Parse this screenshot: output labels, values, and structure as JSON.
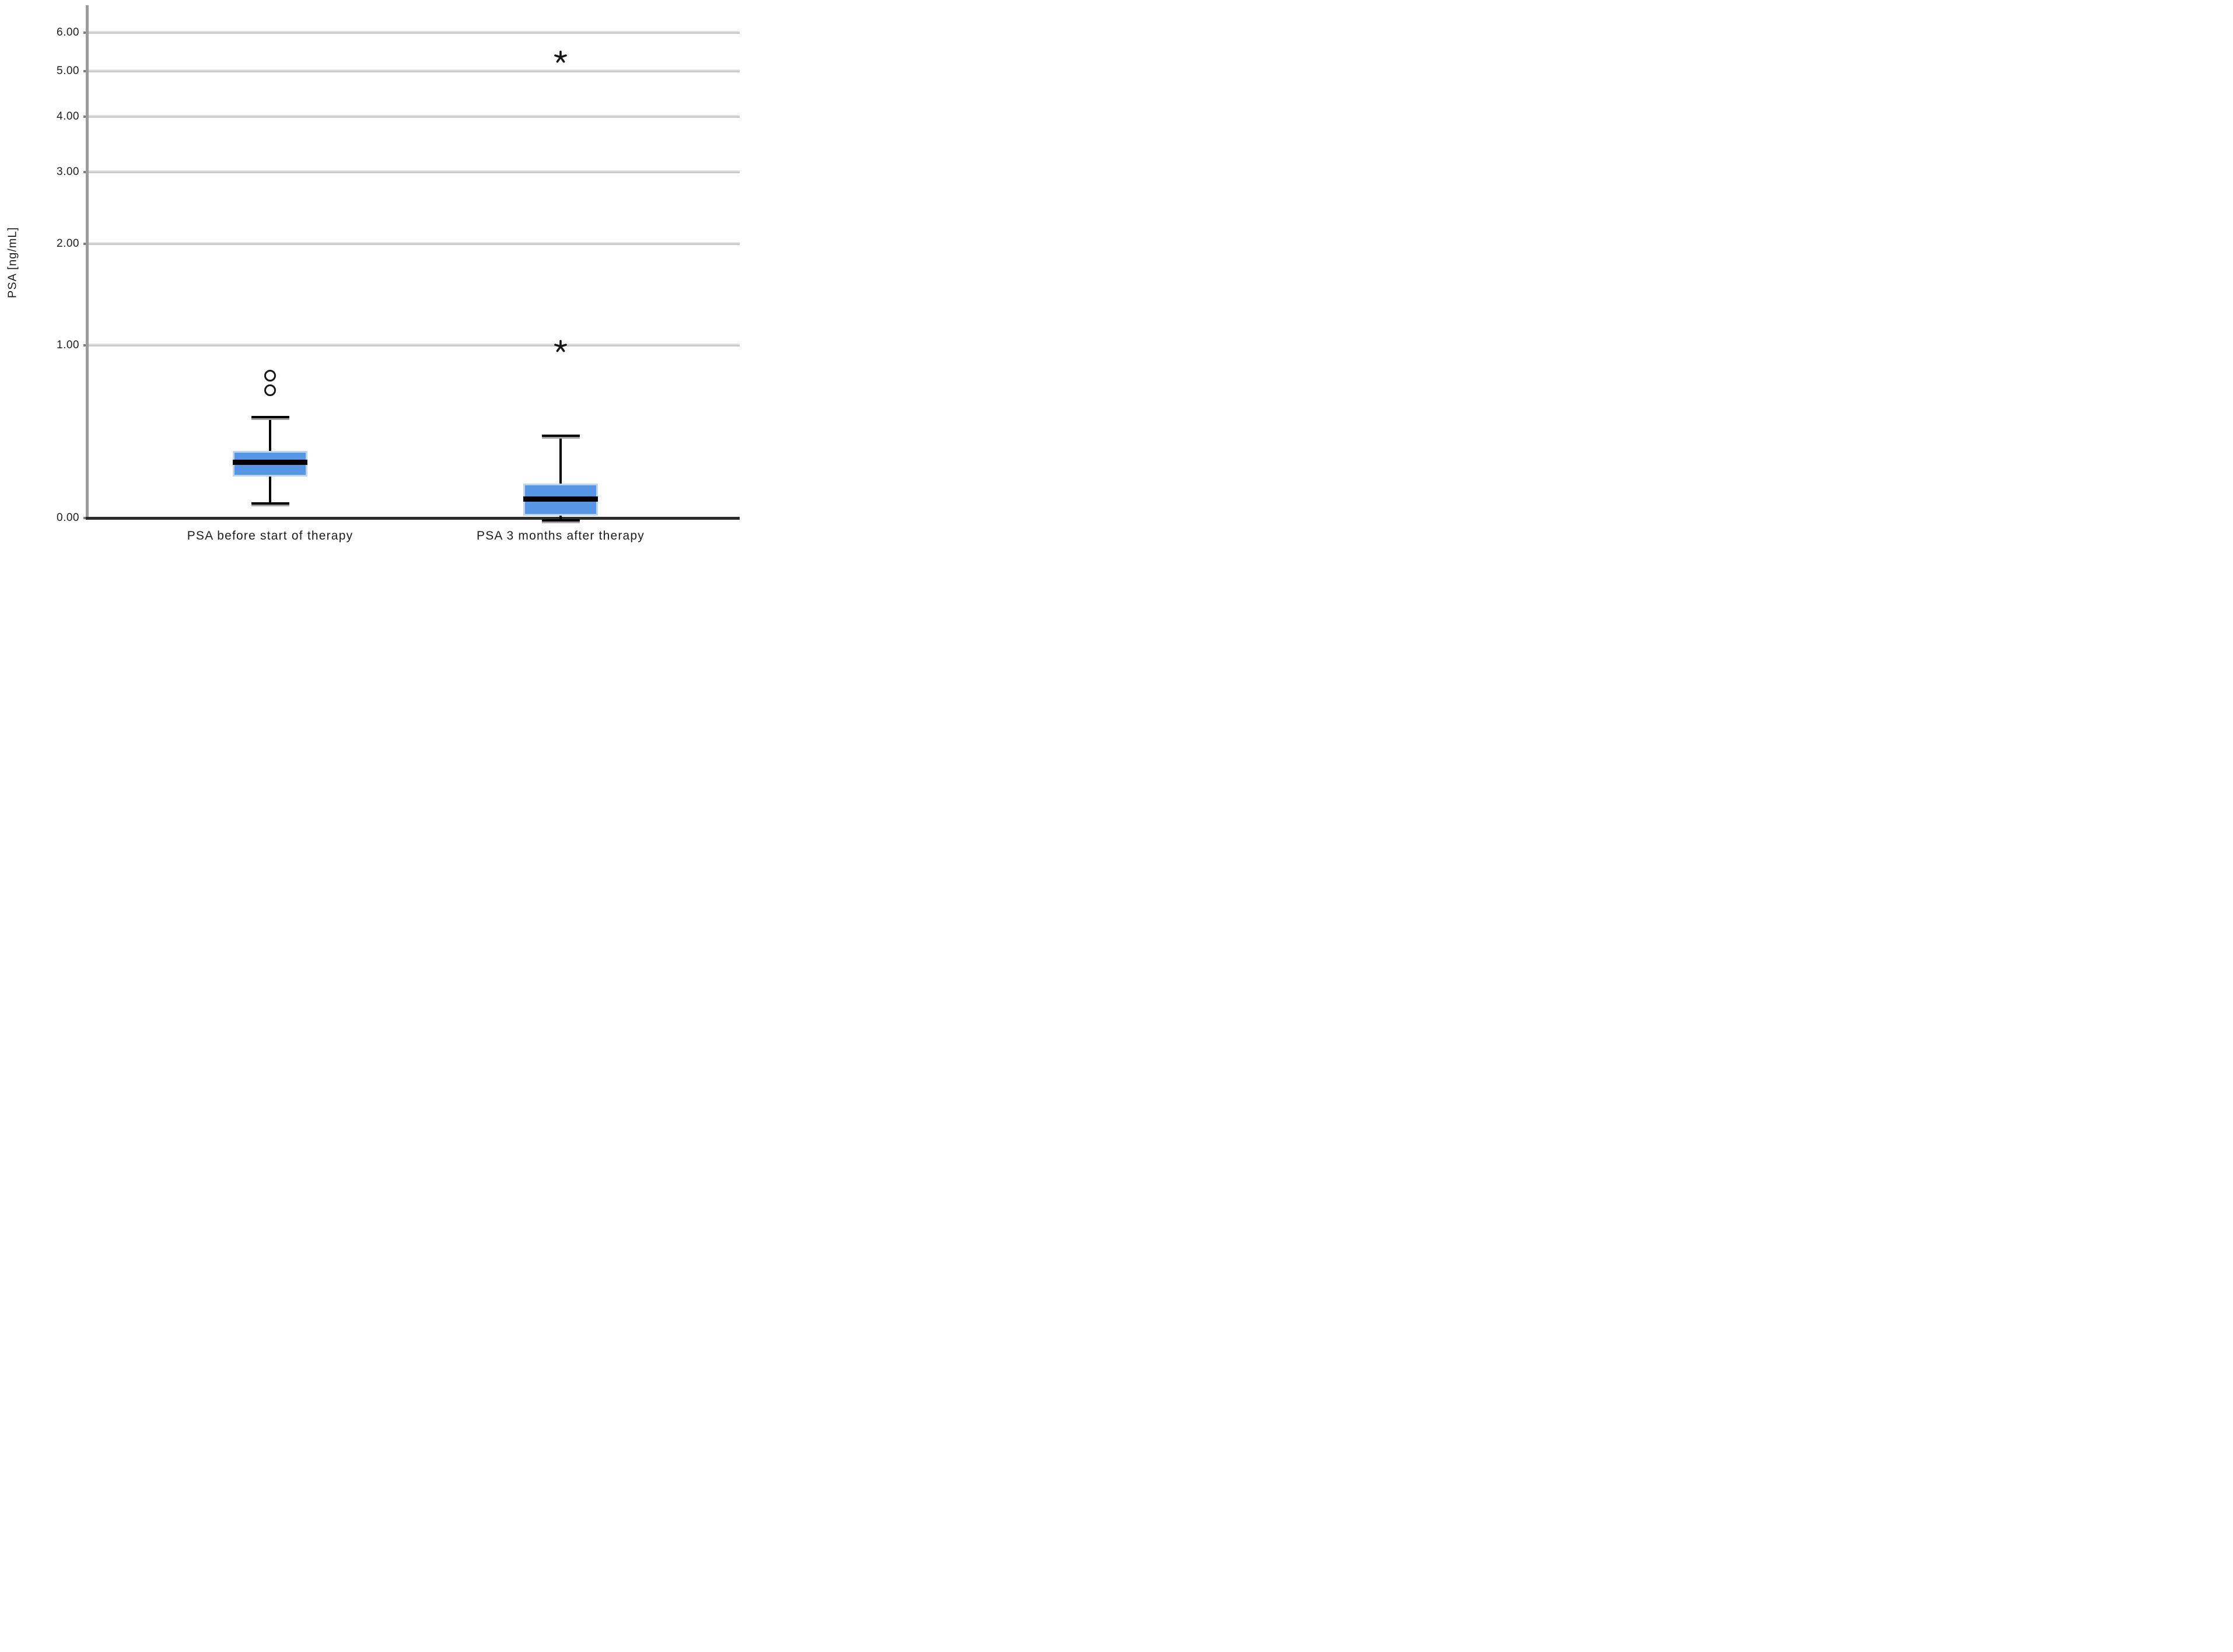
{
  "chart_data": {
    "type": "boxplot",
    "title": "",
    "xlabel": "",
    "ylabel": "PSA [ng/mL]",
    "categories": [
      "PSA before start of therapy",
      "PSA 3 months after therapy"
    ],
    "y_ticks": [
      {
        "value": 0,
        "label": "0.00"
      },
      {
        "value": 1,
        "label": "1.00"
      },
      {
        "value": 2,
        "label": "2.00"
      },
      {
        "value": 3,
        "label": "3.00"
      },
      {
        "value": 4,
        "label": "4.00"
      },
      {
        "value": 5,
        "label": "5.00"
      },
      {
        "value": 6,
        "label": "6.00"
      }
    ],
    "ylim": [
      0,
      6.76
    ],
    "y_scale": "log-transformed: vertical position proportional to ln(value+1)",
    "grid": "horizontal gridlines at each labeled tick, no vertical gridlines",
    "legend": "none",
    "series": [
      {
        "name": "PSA before start of therapy",
        "whisker_low": 0.06,
        "q1": 0.18,
        "median": 0.25,
        "q3": 0.31,
        "whisker_high": 0.5,
        "outliers_mild": [
          0.67,
          0.77
        ],
        "outliers_extreme": []
      },
      {
        "name": "PSA 3 months after therapy",
        "whisker_low": 0.0,
        "q1": 0.01,
        "median": 0.08,
        "q3": 0.15,
        "whisker_high": 0.39,
        "outliers_mild": [],
        "outliers_extreme": [
          0.99,
          5.35
        ]
      }
    ],
    "markers": {
      "mild_outlier": "circle",
      "extreme_outlier": "asterisk"
    }
  },
  "style": {
    "box_fill": "#5795e5",
    "box_border": "#bdd5f2",
    "median_color": "#000000",
    "whisker_color": "#000000",
    "outlier_color": "#151515",
    "gridline_color": "#cbcbcb",
    "gridline_highlight": "#e3e3e3",
    "y_axis_color": "#9b9b9b",
    "x_axis_color": "#2b2b2b",
    "tick_color": "#7f7f7f",
    "text_color": "#1c1c1c",
    "background": "#ffffff"
  }
}
